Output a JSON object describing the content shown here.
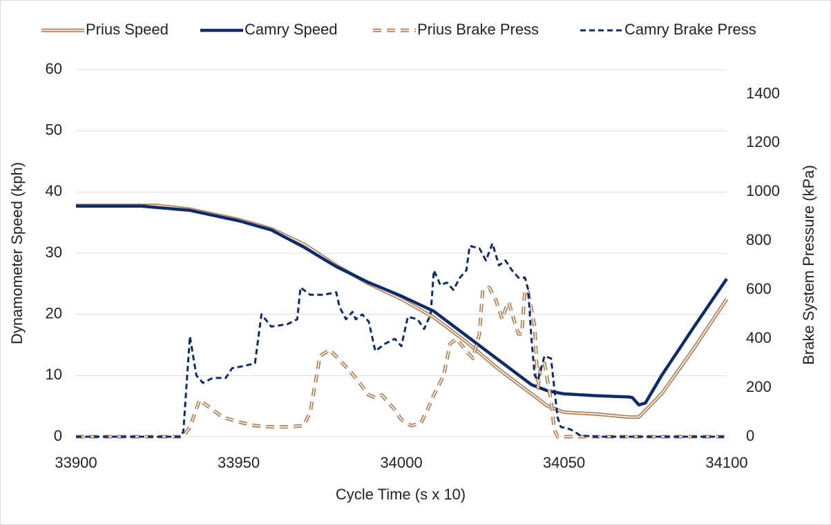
{
  "chart_data": {
    "type": "line",
    "x_label": "Cycle Time (s x 10)",
    "y_label": "Dynamometer  Speed (kph)",
    "y2_label": "Brake System Pressure (kPa)",
    "xlim": [
      33900,
      34100
    ],
    "xticks": [
      33900,
      33950,
      34000,
      34050,
      34100
    ],
    "ylim": [
      0,
      60
    ],
    "yticks": [
      0,
      10,
      20,
      30,
      40,
      50,
      60
    ],
    "y2lim": [
      0,
      1500
    ],
    "y2ticks": [
      0,
      200,
      400,
      600,
      800,
      1000,
      1200,
      1400
    ],
    "grid": true,
    "legend": "top",
    "series": [
      {
        "name": "Prius Speed",
        "color": "#b07c52",
        "double": true,
        "dashed": false,
        "x": [
          33900,
          33925,
          33935,
          33950,
          33960,
          33970,
          33980,
          33990,
          34000,
          34010,
          34020,
          34030,
          34040,
          34045,
          34050,
          34060,
          34070,
          34073,
          34080,
          34090,
          34100
        ],
        "values": [
          37.8,
          37.8,
          37.2,
          35.5,
          34,
          31.5,
          28,
          25,
          22.5,
          19.5,
          15.5,
          11,
          7,
          5,
          4,
          3.7,
          3.2,
          3.2,
          7,
          14.5,
          22.5
        ]
      },
      {
        "name": "Camry Speed",
        "color": "#0d2b6b",
        "double": false,
        "dashed": false,
        "x": [
          33900,
          33920,
          33935,
          33950,
          33960,
          33970,
          33980,
          33990,
          34000,
          34010,
          34020,
          34030,
          34040,
          34045,
          34050,
          34060,
          34070,
          34071,
          34073,
          34075,
          34080,
          34090,
          34100
        ],
        "values": [
          37.7,
          37.7,
          37,
          35.3,
          33.8,
          31,
          27.8,
          25.2,
          23,
          20.5,
          16.5,
          12.5,
          8.5,
          7.5,
          7,
          6.7,
          6.5,
          6.4,
          5.2,
          5.5,
          10,
          18,
          25.8
        ]
      },
      {
        "name": "Prius Brake Press",
        "color": "#b07c52",
        "double": true,
        "dashed": true,
        "axis": "y2",
        "x": [
          33900,
          33933,
          33935,
          33938,
          33942,
          33945,
          33950,
          33955,
          33960,
          33965,
          33970,
          33972,
          33975,
          33978,
          33982,
          33986,
          33990,
          33992,
          33994,
          33998,
          34000,
          34003,
          34006,
          34008,
          34010,
          34013,
          34015,
          34017,
          34020,
          34022,
          34024,
          34025,
          34027,
          34029,
          34031,
          34032,
          34033,
          34035,
          34036,
          34037,
          34038,
          34039,
          34041,
          34042,
          34043,
          34044,
          34046,
          34047,
          34048,
          34100
        ],
        "values": [
          0,
          0,
          40,
          150,
          110,
          80,
          60,
          45,
          40,
          40,
          45,
          100,
          330,
          355,
          300,
          240,
          170,
          160,
          170,
          110,
          70,
          45,
          55,
          110,
          170,
          250,
          380,
          400,
          350,
          320,
          420,
          600,
          610,
          560,
          480,
          520,
          550,
          460,
          420,
          420,
          600,
          590,
          450,
          200,
          300,
          300,
          150,
          30,
          0,
          0
        ]
      },
      {
        "name": "Camry Brake Press",
        "color": "#0d2b6b",
        "double": false,
        "dashed": true,
        "axis": "y2",
        "x": [
          33900,
          33932,
          33933,
          33935,
          33937,
          33939,
          33942,
          33946,
          33948,
          33952,
          33955,
          33957,
          33960,
          33965,
          33968,
          33969,
          33972,
          33976,
          33980,
          33981,
          33983,
          33985,
          33986,
          33988,
          33990,
          33992,
          33995,
          33998,
          34000,
          34002,
          34005,
          34007,
          34009,
          34010,
          34012,
          34014,
          34016,
          34018,
          34020,
          34021,
          34024,
          34026,
          34028,
          34030,
          34032,
          34034,
          34036,
          34038,
          34039,
          34040,
          34041,
          34042,
          34044,
          34046,
          34048,
          34049,
          34052,
          34055,
          34060,
          34100
        ],
        "values": [
          0,
          0,
          20,
          410,
          250,
          220,
          240,
          240,
          280,
          290,
          300,
          500,
          450,
          460,
          480,
          610,
          580,
          580,
          590,
          530,
          480,
          510,
          480,
          500,
          470,
          350,
          380,
          400,
          370,
          490,
          480,
          440,
          500,
          680,
          620,
          630,
          600,
          650,
          680,
          780,
          770,
          720,
          790,
          700,
          720,
          680,
          650,
          650,
          600,
          400,
          250,
          230,
          330,
          320,
          80,
          40,
          30,
          5,
          0,
          0
        ]
      }
    ]
  }
}
